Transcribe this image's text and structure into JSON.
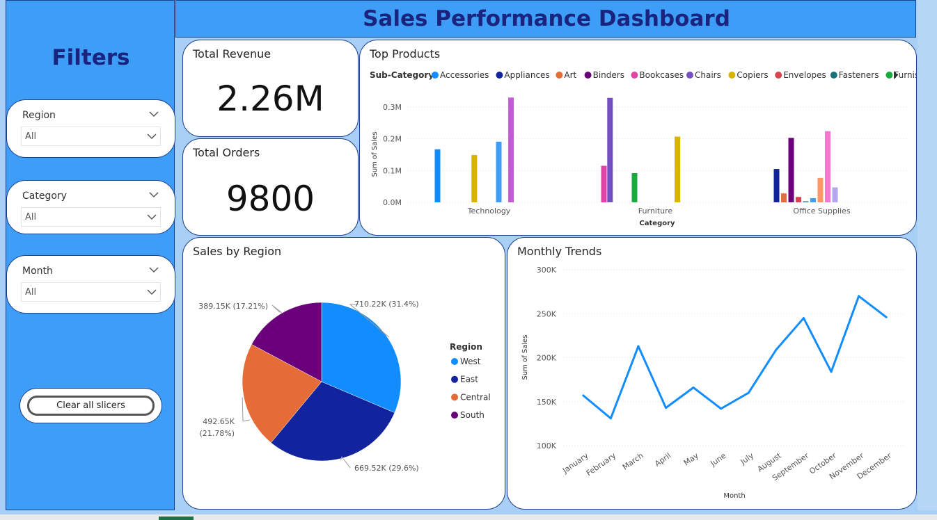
{
  "header": {
    "title": "Sales Performance Dashboard"
  },
  "sidebar": {
    "title": "Filters",
    "slicers": [
      {
        "label": "Region",
        "value": "All"
      },
      {
        "label": "Category",
        "value": "All"
      },
      {
        "label": "Month",
        "value": "All"
      }
    ],
    "clear_label": "Clear all slicers"
  },
  "kpis": {
    "revenue": {
      "title": "Total Revenue",
      "value": "2.26M"
    },
    "orders": {
      "title": "Total Orders",
      "value": "9800"
    }
  },
  "colors": {
    "accent": "#3d9df7",
    "title": "#1a237e",
    "card_border": "#1c3f8a"
  },
  "chart_data": [
    {
      "type": "bar",
      "title": "Top Products",
      "legend_title": "Sub-Category",
      "legend": [
        {
          "name": "Accessories",
          "color": "#118dff"
        },
        {
          "name": "Appliances",
          "color": "#12239e"
        },
        {
          "name": "Art",
          "color": "#e66c37"
        },
        {
          "name": "Binders",
          "color": "#6b007b"
        },
        {
          "name": "Bookcases",
          "color": "#e044a7"
        },
        {
          "name": "Chairs",
          "color": "#744ec2"
        },
        {
          "name": "Copiers",
          "color": "#d9b300"
        },
        {
          "name": "Envelopes",
          "color": "#d64550"
        },
        {
          "name": "Fasteners",
          "color": "#197278"
        },
        {
          "name": "Furnishings",
          "color": "#1aab40"
        }
      ],
      "xlabel": "Category",
      "ylabel": "Sum of Sales",
      "ylim": [
        0,
        0.3
      ],
      "yticks": [
        "0.0M",
        "0.1M",
        "0.2M",
        "0.3M"
      ],
      "categories": [
        "Technology",
        "Furniture",
        "Office Supplies"
      ],
      "bars": [
        [
          {
            "value": 0.167,
            "color": "#118dff"
          },
          {
            "value": 0.149,
            "color": "#d9b300"
          },
          {
            "value": 0.191,
            "color": "#3d9df7"
          },
          {
            "value": 0.33,
            "color": "#c15dd3"
          }
        ],
        [
          {
            "value": 0.115,
            "color": "#e044a7"
          },
          {
            "value": 0.329,
            "color": "#744ec2"
          },
          {
            "value": 0.092,
            "color": "#1aab40"
          },
          {
            "value": 0.207,
            "color": "#d9b300"
          }
        ],
        [
          {
            "value": 0.105,
            "color": "#12239e"
          },
          {
            "value": 0.028,
            "color": "#e66c37"
          },
          {
            "value": 0.203,
            "color": "#6b007b"
          },
          {
            "value": 0.017,
            "color": "#d64550"
          },
          {
            "value": 0.003,
            "color": "#197278"
          },
          {
            "value": 0.013,
            "color": "#3d9df7"
          },
          {
            "value": 0.077,
            "color": "#fe9666"
          },
          {
            "value": 0.224,
            "color": "#f578d0"
          },
          {
            "value": 0.047,
            "color": "#b4a7f2"
          }
        ]
      ]
    },
    {
      "type": "pie",
      "title": "Sales by Region",
      "legend_title": "Region",
      "slices": [
        {
          "name": "West",
          "value": 710.22,
          "label": "710.22K (31.4%)",
          "color": "#118dff"
        },
        {
          "name": "East",
          "value": 669.52,
          "label": "669.52K (29.6%)",
          "color": "#12239e"
        },
        {
          "name": "Central",
          "value": 492.65,
          "label_lines": [
            "492.65K",
            "(21.78%)"
          ],
          "color": "#e66c37"
        },
        {
          "name": "South",
          "value": 389.15,
          "label": "389.15K (17.21%)",
          "color": "#6b007b"
        }
      ]
    },
    {
      "type": "line",
      "title": "Monthly Trends",
      "xlabel": "Month",
      "ylabel": "Sum of Sales",
      "ylim": [
        100,
        300
      ],
      "yticks": [
        "100K",
        "150K",
        "200K",
        "250K",
        "300K"
      ],
      "categories": [
        "January",
        "February",
        "March",
        "April",
        "May",
        "June",
        "July",
        "August",
        "September",
        "October",
        "November",
        "December"
      ],
      "values": [
        157,
        131,
        213,
        143,
        166,
        142,
        160,
        209,
        245,
        184,
        270,
        246
      ],
      "color": "#118dff"
    }
  ]
}
